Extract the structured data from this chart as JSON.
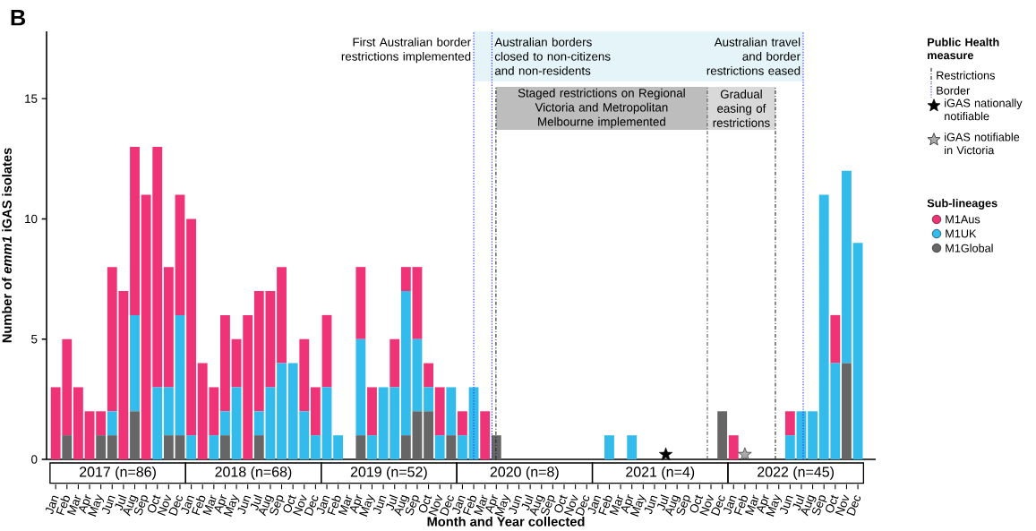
{
  "chart_data": {
    "type": "bar",
    "title": "B",
    "xlabel": "Month and Year collected",
    "ylabel": "Number of *emm1* iGAS isolates",
    "legend_title": "Sub-lineages",
    "legend": "right",
    "stacked": true,
    "x": [
      "2017-01",
      "2017-02",
      "2017-03",
      "2017-04",
      "2017-05",
      "2017-06",
      "2017-07",
      "2017-08",
      "2017-09",
      "2017-10",
      "2017-11",
      "2017-12",
      "2018-01",
      "2018-02",
      "2018-03",
      "2018-04",
      "2018-05",
      "2018-06",
      "2018-07",
      "2018-08",
      "2018-09",
      "2018-10",
      "2018-11",
      "2018-12",
      "2019-01",
      "2019-02",
      "2019-03",
      "2019-04",
      "2019-05",
      "2019-06",
      "2019-07",
      "2019-08",
      "2019-09",
      "2019-10",
      "2019-11",
      "2019-12",
      "2020-01",
      "2020-02",
      "2020-03",
      "2020-04",
      "2020-05",
      "2020-06",
      "2020-07",
      "2020-08",
      "2020-09",
      "2020-10",
      "2020-11",
      "2020-12",
      "2021-01",
      "2021-02",
      "2021-03",
      "2021-04",
      "2021-05",
      "2021-06",
      "2021-07",
      "2021-08",
      "2021-09",
      "2021-10",
      "2021-11",
      "2021-12",
      "2022-01",
      "2022-02",
      "2022-03",
      "2022-04",
      "2022-05",
      "2022-06",
      "2022-07",
      "2022-08",
      "2022-09",
      "2022-10",
      "2022-11",
      "2022-12"
    ],
    "series": [
      {
        "name": "M1Global",
        "color": "#666666",
        "values": [
          0,
          1,
          0,
          0,
          1,
          1,
          0,
          2,
          0,
          0,
          1,
          1,
          0,
          0,
          0,
          1,
          0,
          0,
          1,
          0,
          0,
          0,
          0,
          0,
          0,
          0,
          0,
          1,
          0,
          0,
          0,
          1,
          2,
          2,
          0,
          1,
          0,
          0,
          0,
          1,
          0,
          0,
          0,
          0,
          0,
          0,
          0,
          0,
          0,
          0,
          0,
          0,
          0,
          0,
          0,
          0,
          0,
          0,
          0,
          2,
          0,
          0,
          0,
          0,
          0,
          0,
          0,
          0,
          0,
          0,
          4,
          0
        ]
      },
      {
        "name": "M1UK",
        "color": "#33bbeb",
        "values": [
          0,
          0,
          0,
          0,
          0,
          1,
          0,
          4,
          0,
          3,
          2,
          5,
          1,
          0,
          1,
          1,
          3,
          0,
          1,
          3,
          4,
          4,
          2,
          1,
          3,
          1,
          0,
          4,
          1,
          3,
          3,
          6,
          3,
          1,
          1,
          2,
          1,
          3,
          0,
          0,
          0,
          0,
          0,
          0,
          0,
          0,
          0,
          0,
          0,
          1,
          0,
          1,
          0,
          0,
          0,
          0,
          0,
          0,
          0,
          0,
          0,
          0,
          0,
          0,
          0,
          1,
          2,
          2,
          11,
          4,
          8,
          9
        ]
      },
      {
        "name": "M1Aus",
        "color": "#ef3377",
        "values": [
          3,
          4,
          3,
          2,
          1,
          6,
          7,
          7,
          11,
          10,
          5,
          5,
          9,
          4,
          2,
          4,
          2,
          6,
          5,
          4,
          4,
          0,
          3,
          2,
          3,
          0,
          0,
          3,
          2,
          0,
          2,
          1,
          3,
          1,
          2,
          0,
          1,
          0,
          2,
          0,
          0,
          0,
          0,
          0,
          0,
          0,
          0,
          0,
          0,
          0,
          0,
          0,
          0,
          0,
          0,
          0,
          0,
          0,
          0,
          0,
          1,
          0,
          0,
          0,
          0,
          1,
          0,
          0,
          0,
          2,
          0,
          0
        ]
      },
      {
        "name": "iGAS nationally notifiable",
        "type": "scatter",
        "marker": "star",
        "color": "#000000",
        "x": [
          "2021-07"
        ],
        "values": [
          0.2
        ]
      },
      {
        "name": "iGAS notifiable in Victoria",
        "type": "scatter",
        "marker": "star",
        "color": "#aaaaaa",
        "x": [
          "2022-02"
        ],
        "values": [
          0.2
        ]
      }
    ],
    "xlim": [
      "2016-12-07",
      "2023-01-19"
    ],
    "xticks": [
      {
        "value": "2017-01",
        "label": "Jan"
      },
      {
        "value": "2017-02",
        "label": "Feb"
      },
      {
        "value": "2017-03",
        "label": "Mar"
      },
      {
        "value": "2017-04",
        "label": "Apr"
      },
      {
        "value": "2017-05",
        "label": "May"
      },
      {
        "value": "2017-06",
        "label": "Jun"
      },
      {
        "value": "2017-07",
        "label": "Jul"
      },
      {
        "value": "2017-08",
        "label": "Aug"
      },
      {
        "value": "2017-09",
        "label": "Sep"
      },
      {
        "value": "2017-10",
        "label": "Oct"
      },
      {
        "value": "2017-11",
        "label": "Nov"
      },
      {
        "value": "2017-12",
        "label": "Dec"
      },
      {
        "value": "2018-01",
        "label": "Jan"
      },
      {
        "value": "2018-02",
        "label": "Feb"
      },
      {
        "value": "2018-03",
        "label": "Mar"
      },
      {
        "value": "2018-04",
        "label": "Apr"
      },
      {
        "value": "2018-05",
        "label": "May"
      },
      {
        "value": "2018-06",
        "label": "Jun"
      },
      {
        "value": "2018-07",
        "label": "Jul"
      },
      {
        "value": "2018-08",
        "label": "Aug"
      },
      {
        "value": "2018-09",
        "label": "Sep"
      },
      {
        "value": "2018-10",
        "label": "Oct"
      },
      {
        "value": "2018-11",
        "label": "Nov"
      },
      {
        "value": "2018-12",
        "label": "Dec"
      },
      {
        "value": "2019-01",
        "label": "Jan"
      },
      {
        "value": "2019-02",
        "label": "Feb"
      },
      {
        "value": "2019-03",
        "label": "Mar"
      },
      {
        "value": "2019-04",
        "label": "Apr"
      },
      {
        "value": "2019-05",
        "label": "May"
      },
      {
        "value": "2019-06",
        "label": "Jun"
      },
      {
        "value": "2019-07",
        "label": "Jul"
      },
      {
        "value": "2019-08",
        "label": "Aug"
      },
      {
        "value": "2019-09",
        "label": "Sep"
      },
      {
        "value": "2019-10",
        "label": "Oct"
      },
      {
        "value": "2019-11",
        "label": "Nov"
      },
      {
        "value": "2019-12",
        "label": "Dec"
      },
      {
        "value": "2020-01",
        "label": "Jan"
      },
      {
        "value": "2020-02",
        "label": "Feb"
      },
      {
        "value": "2020-03",
        "label": "Mar"
      },
      {
        "value": "2020-04",
        "label": "Apr"
      },
      {
        "value": "2020-05",
        "label": "May"
      },
      {
        "value": "2020-06",
        "label": "Jun"
      },
      {
        "value": "2020-07",
        "label": "Jul"
      },
      {
        "value": "2020-08",
        "label": "Aug"
      },
      {
        "value": "2020-09",
        "label": "Sep"
      },
      {
        "value": "2020-10",
        "label": "Oct"
      },
      {
        "value": "2020-11",
        "label": "Nov"
      },
      {
        "value": "2020-12",
        "label": "Dec"
      },
      {
        "value": "2021-01",
        "label": "Jan"
      },
      {
        "value": "2021-02",
        "label": "Feb"
      },
      {
        "value": "2021-03",
        "label": "Mar"
      },
      {
        "value": "2021-04",
        "label": "Apr"
      },
      {
        "value": "2021-05",
        "label": "May"
      },
      {
        "value": "2021-06",
        "label": "Jun"
      },
      {
        "value": "2021-07",
        "label": "Jul"
      },
      {
        "value": "2021-08",
        "label": "Aug"
      },
      {
        "value": "2021-09",
        "label": "Sep"
      },
      {
        "value": "2021-10",
        "label": "Oct"
      },
      {
        "value": "2021-11",
        "label": "Nov"
      },
      {
        "value": "2021-12",
        "label": "Dec"
      },
      {
        "value": "2022-01",
        "label": "Jan"
      },
      {
        "value": "2022-02",
        "label": "Feb"
      },
      {
        "value": "2022-03",
        "label": "Mar"
      },
      {
        "value": "2022-04",
        "label": "Apr"
      },
      {
        "value": "2022-05",
        "label": "May"
      },
      {
        "value": "2022-06",
        "label": "Jun"
      },
      {
        "value": "2022-07",
        "label": "Jul"
      },
      {
        "value": "2022-08",
        "label": "Aug"
      },
      {
        "value": "2022-09",
        "label": "Sep"
      },
      {
        "value": "2022-10",
        "label": "Oct"
      },
      {
        "value": "2022-11",
        "label": "Nov"
      },
      {
        "value": "2022-12",
        "label": "Dec"
      }
    ],
    "ylim": [
      0,
      17.8
    ],
    "yticks": [
      0,
      5,
      10,
      15
    ],
    "ref_lines": [
      {
        "axis": "x",
        "value": "2020-02-01",
        "label": "First Australian border restrictions implemented",
        "color": "#3030ff",
        "line_style": "dotted"
      },
      {
        "axis": "x",
        "value": "2020-03-20",
        "label": "Australian borders closed to non-citizens and non-residents",
        "color": "#3030ff",
        "line_style": "dotted"
      },
      {
        "axis": "x",
        "value": "2020-03-31",
        "color": "#222222",
        "line_style": "dashed"
      },
      {
        "axis": "x",
        "value": "2021-10-22",
        "color": "#555555",
        "line_style": "dashed"
      },
      {
        "axis": "x",
        "value": "2022-04-22",
        "color": "#222222",
        "line_style": "dashed"
      },
      {
        "axis": "x",
        "value": "2022-07-06",
        "label": "Australian travel and border restrictions eased",
        "color": "#3030ff",
        "line_style": "dotted"
      }
    ],
    "bands": [
      {
        "axis": "x",
        "from": "2020-02-01",
        "to": "2022-07-06",
        "color": "#e5f4f8"
      },
      {
        "axis": "x",
        "from": "2020-03-31",
        "to": "2021-10-22",
        "label": "Staged restrictions on Regional Victoria and Metropolitan Melbourne implemented",
        "color": "#bdbdbd"
      },
      {
        "axis": "x",
        "from": "2021-10-22",
        "to": "2022-04-22",
        "label": "Gradual easing of restrictions",
        "color": "#d9d9d9"
      }
    ],
    "annotations": [
      "Public Health measure",
      "Restrictions",
      "Border",
      "2017 (n=86)",
      "2018 (n=68)",
      "2019 (n=52)",
      "2020 (n=8)",
      "2021 (n=4)",
      "2022 (n=45)"
    ]
  }
}
